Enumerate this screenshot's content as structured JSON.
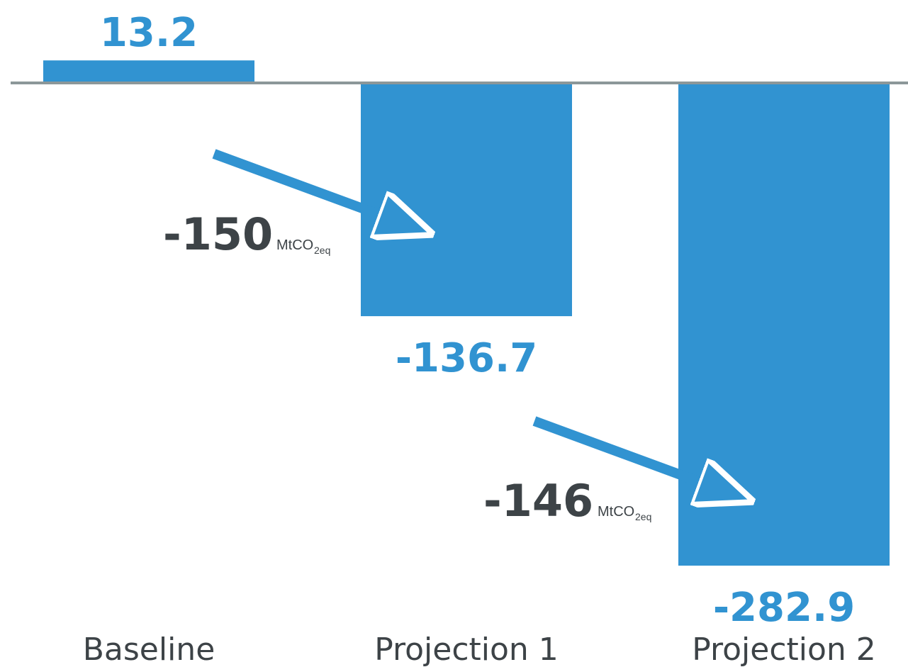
{
  "chart_data": {
    "type": "bar",
    "categories": [
      "Baseline",
      "Projection 1",
      "Projection 2"
    ],
    "values": [
      13.2,
      -136.7,
      -282.9
    ],
    "value_labels": [
      "13.2",
      "-136.7",
      "-282.9"
    ],
    "ylim": [
      -282.9,
      13.2
    ],
    "grid": false,
    "colors": {
      "bar": "#3193d1",
      "zero_line": "#8c9799",
      "delta_text": "#3d4347",
      "arrow": "#3193d1"
    },
    "annotations": [
      {
        "from": "Baseline",
        "to": "Projection 1",
        "value": "-150",
        "unit": "MtCO",
        "sub": "2eq",
        "icon": "arrow-down-right"
      },
      {
        "from": "Projection 1",
        "to": "Projection 2",
        "value": "-146",
        "unit": "MtCO",
        "sub": "2eq",
        "icon": "arrow-down-right"
      }
    ]
  }
}
